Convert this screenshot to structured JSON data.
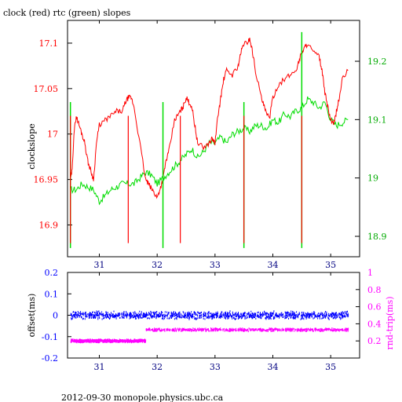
{
  "title": "clock (red) rtc (green) slopes",
  "footer": "2012-09-30 monopole.physics.ubc.ca",
  "colors": {
    "clock": "#ff0000",
    "rtc": "#00dd00",
    "offset": "#0000ff",
    "rtt": "#ff00ff",
    "axis": "#000000"
  },
  "chart_data": [
    {
      "type": "line",
      "title": "clock (red) rtc (green) slopes",
      "ylabel": "clockslope",
      "xlim": [
        30.45,
        35.5
      ],
      "ylim_left": [
        16.865,
        17.125
      ],
      "ylim_right": [
        18.865,
        19.27
      ],
      "x_ticks": [
        31,
        32,
        33,
        34,
        35
      ],
      "y_ticks_left": [
        "17.1",
        "17.05",
        "17",
        "16.95",
        "16.9"
      ],
      "y_ticks_right": [
        "19.2",
        "19.1",
        "19",
        "18.9"
      ],
      "series": [
        {
          "name": "clock",
          "axis": "left",
          "color": "#ff0000",
          "x": [
            30.5,
            30.53,
            30.56,
            30.6,
            30.65,
            30.7,
            30.75,
            30.8,
            30.85,
            30.9,
            30.95,
            31.0,
            31.1,
            31.2,
            31.3,
            31.4,
            31.45,
            31.5,
            31.55,
            31.6,
            31.7,
            31.8,
            31.85,
            31.9,
            31.95,
            32.0,
            32.05,
            32.1,
            32.15,
            32.2,
            32.3,
            32.35,
            32.4,
            32.45,
            32.5,
            32.55,
            32.6,
            32.65,
            32.7,
            32.8,
            32.9,
            32.95,
            33.0,
            33.05,
            33.1,
            33.15,
            33.2,
            33.3,
            33.4,
            33.45,
            33.5,
            33.55,
            33.6,
            33.65,
            33.7,
            33.8,
            33.85,
            33.9,
            33.95,
            34.0,
            34.1,
            34.2,
            34.3,
            34.4,
            34.45,
            34.5,
            34.55,
            34.6,
            34.7,
            34.8,
            34.85,
            34.9,
            34.95,
            35.0,
            35.05,
            35.1,
            35.15,
            35.2,
            35.3
          ],
          "y": [
            16.95,
            16.96,
            17.0,
            17.02,
            17.01,
            17.0,
            16.99,
            16.97,
            16.96,
            16.95,
            16.99,
            17.01,
            17.015,
            17.02,
            17.025,
            17.025,
            17.035,
            17.04,
            17.04,
            17.03,
            16.99,
            16.95,
            16.945,
            16.94,
            16.935,
            16.93,
            16.94,
            16.95,
            16.97,
            16.98,
            17.015,
            17.02,
            17.025,
            17.03,
            17.04,
            17.035,
            17.03,
            17.01,
            16.99,
            16.985,
            16.99,
            16.995,
            16.99,
            17.02,
            17.04,
            17.06,
            17.07,
            17.065,
            17.075,
            17.09,
            17.1,
            17.1,
            17.105,
            17.09,
            17.07,
            17.04,
            17.03,
            17.02,
            17.02,
            17.04,
            17.055,
            17.06,
            17.065,
            17.07,
            17.08,
            17.09,
            17.095,
            17.1,
            17.09,
            17.085,
            17.07,
            17.045,
            17.03,
            17.015,
            17.01,
            17.025,
            17.04,
            17.06,
            17.07
          ]
        },
        {
          "name": "rtc",
          "axis": "right",
          "color": "#00dd00",
          "x": [
            30.5,
            30.6,
            30.7,
            30.8,
            30.9,
            31.0,
            31.1,
            31.2,
            31.3,
            31.4,
            31.5,
            31.6,
            31.7,
            31.8,
            31.9,
            32.0,
            32.1,
            32.2,
            32.3,
            32.4,
            32.5,
            32.6,
            32.7,
            32.8,
            32.9,
            33.0,
            33.1,
            33.2,
            33.3,
            33.4,
            33.5,
            33.6,
            33.7,
            33.8,
            33.9,
            34.0,
            34.1,
            34.2,
            34.3,
            34.4,
            34.5,
            34.6,
            34.7,
            34.8,
            34.9,
            35.0,
            35.1,
            35.2,
            35.3
          ],
          "y": [
            18.98,
            18.98,
            18.99,
            18.985,
            18.98,
            18.96,
            18.97,
            18.98,
            18.985,
            18.99,
            18.99,
            18.99,
            19.0,
            19.01,
            19.005,
            18.99,
            19.0,
            19.01,
            19.02,
            19.03,
            19.04,
            19.05,
            19.035,
            19.045,
            19.06,
            19.06,
            19.07,
            19.06,
            19.075,
            19.08,
            19.085,
            19.08,
            19.09,
            19.09,
            19.085,
            19.1,
            19.095,
            19.11,
            19.105,
            19.115,
            19.12,
            19.135,
            19.13,
            19.12,
            19.13,
            19.1,
            19.09,
            19.095,
            19.1
          ]
        }
      ],
      "spikes": {
        "clock": [
          30.5,
          31.5,
          32.4,
          33.5,
          34.5
        ],
        "rtc": [
          30.5,
          32.1,
          33.5,
          34.5
        ]
      }
    },
    {
      "type": "scatter",
      "ylabel_left": "offset(ms)",
      "ylabel_right": "rnd-trip(ms)",
      "xlim": [
        30.45,
        35.5
      ],
      "ylim_left": [
        -0.2,
        0.2
      ],
      "ylim_right": [
        0.0,
        1.0
      ],
      "x_ticks": [
        31,
        32,
        33,
        34,
        35
      ],
      "y_ticks_left": [
        "0.2",
        "0.1",
        "0",
        "-0.1",
        "-0.2"
      ],
      "y_ticks_right": [
        "1",
        "0.8",
        "0.6",
        "0.4",
        "0.2"
      ],
      "series": [
        {
          "name": "offset",
          "axis": "left",
          "color": "#0000ff",
          "x_range": [
            30.5,
            35.3
          ],
          "center": 0.0,
          "spread": 0.02
        },
        {
          "name": "rnd-trip",
          "axis": "right",
          "color": "#ff00ff",
          "segments": [
            {
              "x_range": [
                30.5,
                31.8
              ],
              "center": 0.2,
              "spread": 0.02
            },
            {
              "x_range": [
                31.8,
                35.3
              ],
              "center": 0.33,
              "spread": 0.02
            }
          ]
        }
      ]
    }
  ]
}
